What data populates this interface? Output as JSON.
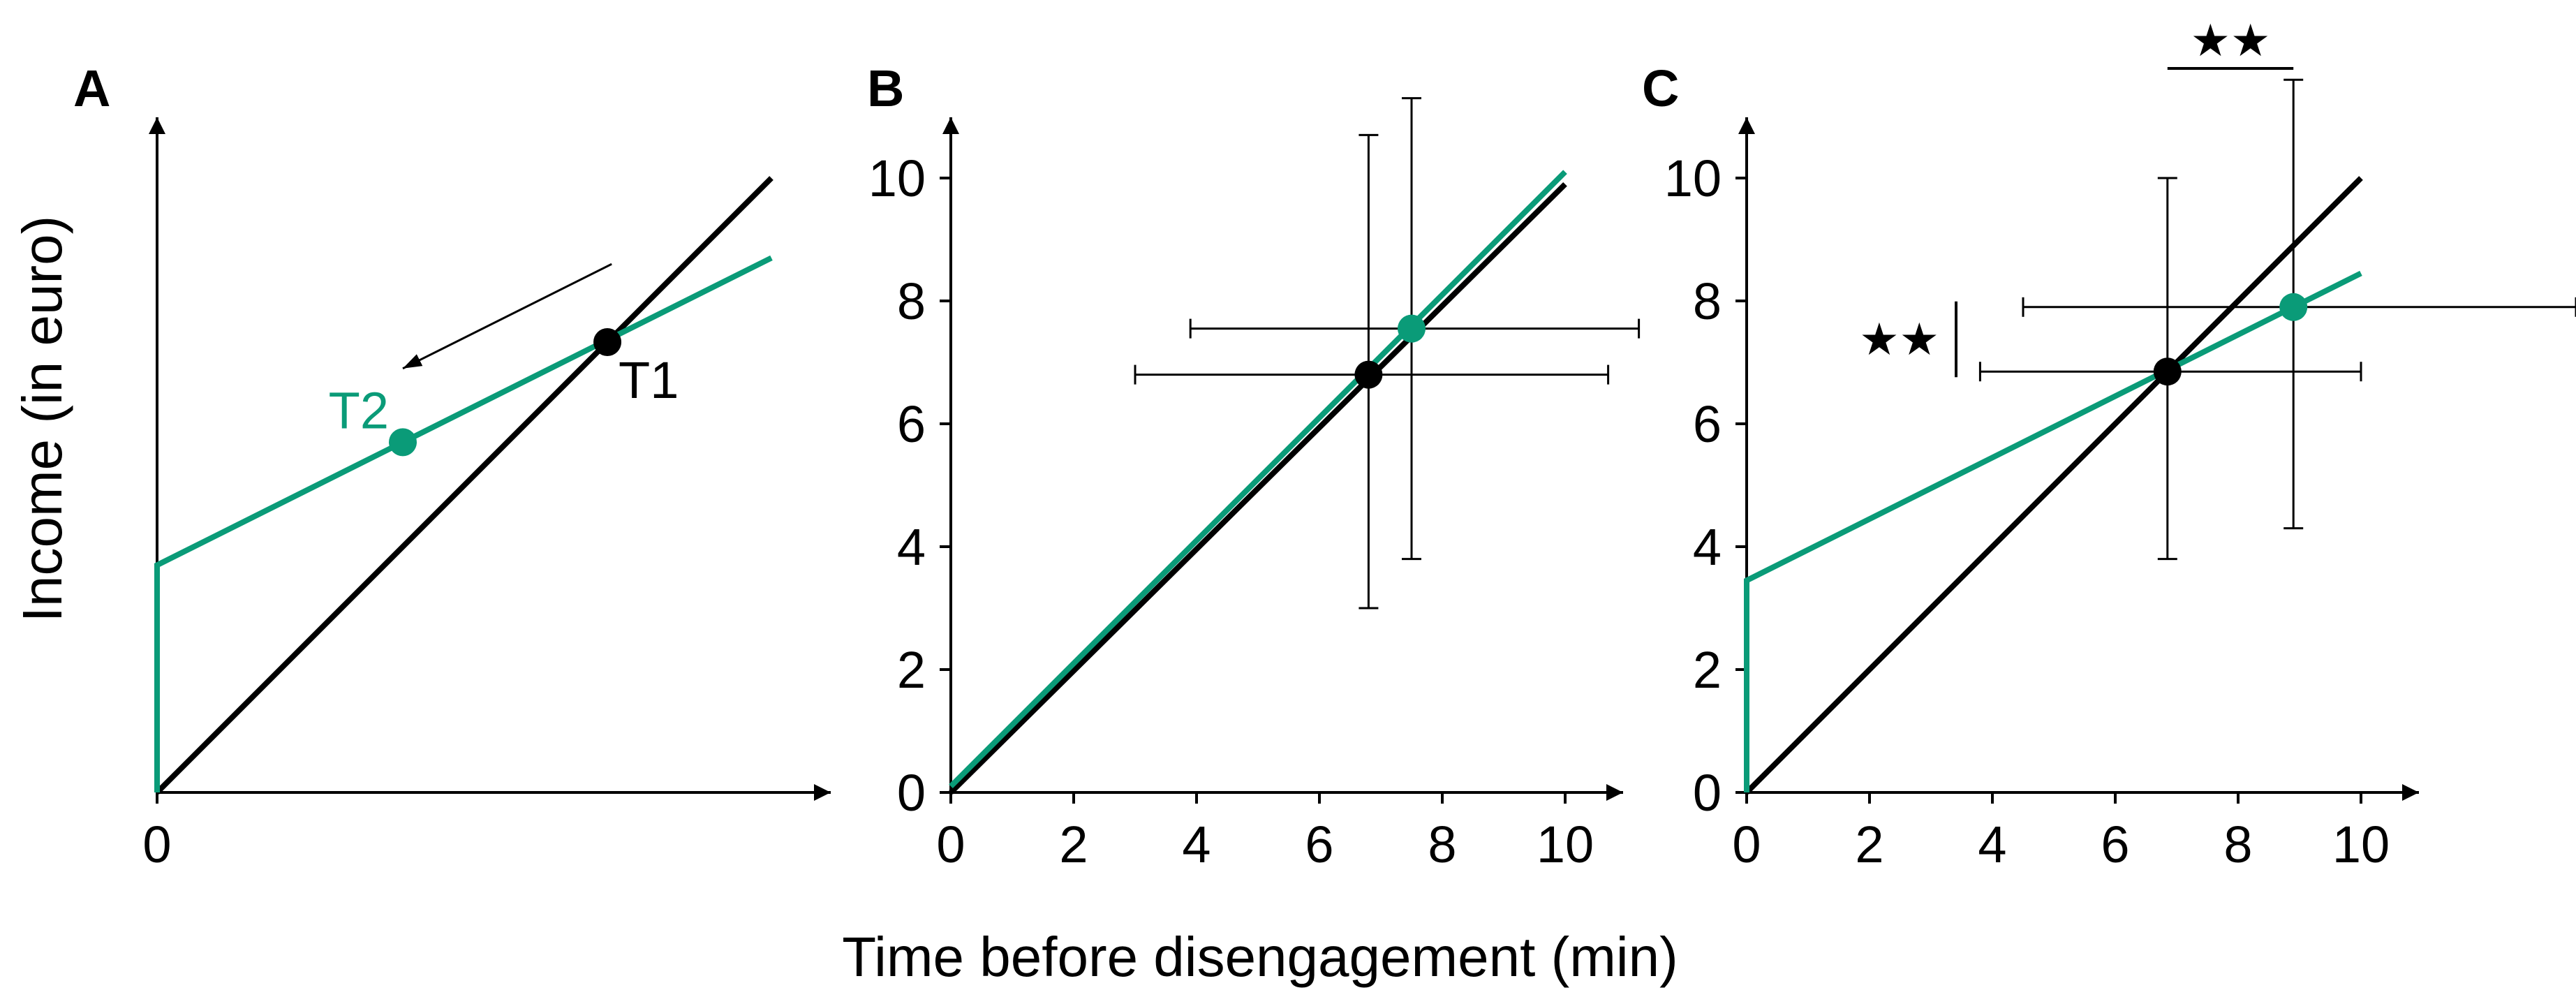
{
  "colors": {
    "ref_line": "#000000",
    "series": "#0a9b78",
    "error_bar": "#000000"
  },
  "figure": {
    "ylabel": "Income (in euro)",
    "xlabel": "Time before disengagement (min)"
  },
  "chart_data": [
    {
      "panel": "A",
      "type": "line",
      "xlim": [
        0,
        10.8
      ],
      "ylim": [
        0,
        11
      ],
      "xticks": [
        0
      ],
      "yticks": [],
      "series": [
        {
          "values": [
            [
              0,
              0
            ],
            [
              10,
              10
            ]
          ]
        },
        {
          "values": [
            [
              0,
              0
            ],
            [
              0,
              3.7
            ],
            [
              10,
              8.7
            ]
          ]
        }
      ],
      "points": [
        {
          "label": "T1",
          "x": 7.33,
          "y": 7.33,
          "color": "ref_line"
        },
        {
          "label": "T2",
          "x": 4.0,
          "y": 5.7,
          "color": "series"
        }
      ],
      "annotations": [
        {
          "type": "arrow",
          "from": [
            7.4,
            8.6
          ],
          "to": [
            4.0,
            6.9
          ]
        }
      ]
    },
    {
      "panel": "B",
      "type": "line",
      "xlim": [
        0,
        10.8
      ],
      "ylim": [
        0,
        11
      ],
      "xticks": [
        0,
        2,
        4,
        6,
        8,
        10
      ],
      "yticks": [
        0,
        2,
        4,
        6,
        8,
        10
      ],
      "series": [
        {
          "values": [
            [
              0,
              0
            ],
            [
              10,
              9.9
            ]
          ]
        },
        {
          "values": [
            [
              0,
              0.1
            ],
            [
              10,
              10.1
            ]
          ]
        }
      ],
      "points": [
        {
          "x": 6.8,
          "y": 6.8,
          "xerr": [
            3.0,
            10.7
          ],
          "yerr": [
            3.0,
            10.7
          ],
          "color": "ref_line"
        },
        {
          "x": 7.5,
          "y": 7.55,
          "xerr": [
            3.9,
            11.2
          ],
          "yerr": [
            3.8,
            11.3
          ],
          "color": "series"
        }
      ]
    },
    {
      "panel": "C",
      "type": "line",
      "xlim": [
        0,
        10.8
      ],
      "ylim": [
        0,
        11
      ],
      "xticks": [
        0,
        2,
        4,
        6,
        8,
        10
      ],
      "yticks": [
        0,
        2,
        4,
        6,
        8,
        10
      ],
      "series": [
        {
          "values": [
            [
              0,
              0
            ],
            [
              10,
              10
            ]
          ]
        },
        {
          "values": [
            [
              0,
              0
            ],
            [
              0,
              3.45
            ],
            [
              10,
              8.45
            ]
          ]
        }
      ],
      "points": [
        {
          "x": 6.85,
          "y": 6.85,
          "xerr": [
            3.8,
            10.0
          ],
          "yerr": [
            3.8,
            10.0
          ],
          "color": "ref_line"
        },
        {
          "x": 8.9,
          "y": 7.9,
          "xerr": [
            4.5,
            13.5
          ],
          "yerr": [
            4.3,
            11.6
          ],
          "color": "series"
        }
      ],
      "significance": [
        {
          "label": "★★",
          "axis": "x",
          "span": [
            6.85,
            8.9
          ]
        },
        {
          "label": "★★",
          "axis": "y",
          "span": [
            6.85,
            7.9
          ]
        }
      ]
    }
  ]
}
